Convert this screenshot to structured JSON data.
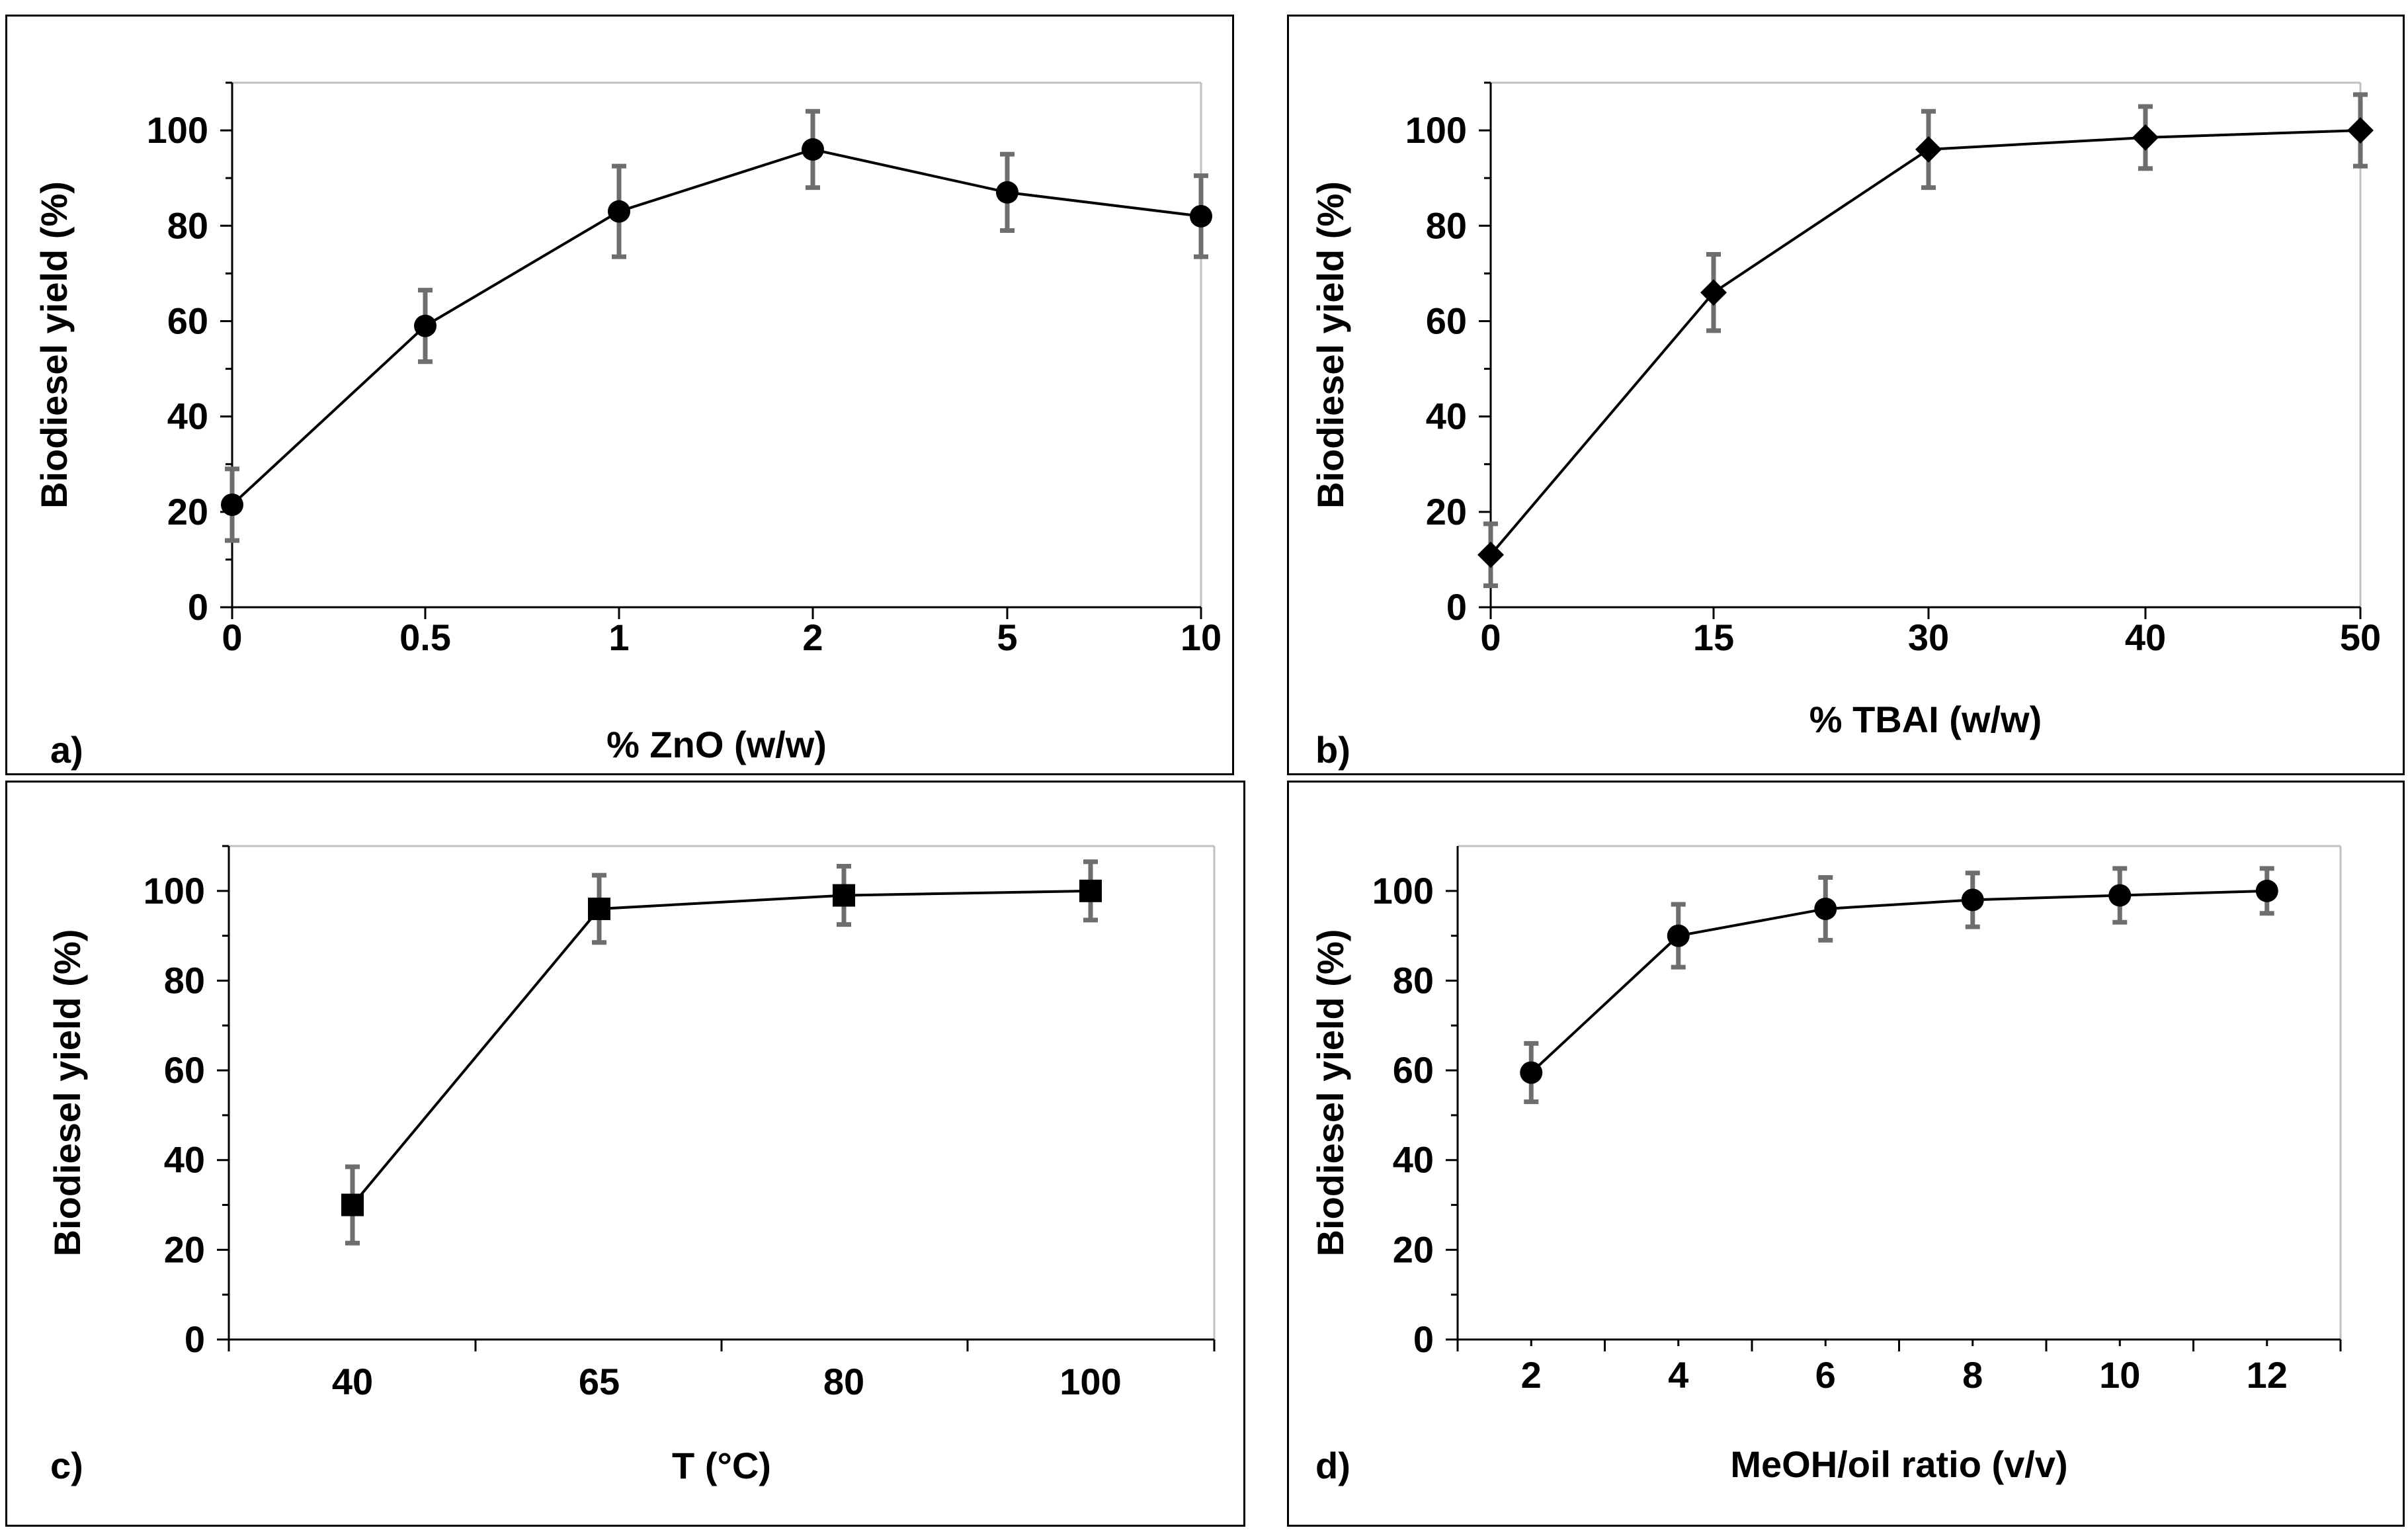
{
  "chart_data": [
    {
      "panel": "a)",
      "type": "line",
      "xlabel": "% ZnO (w/w)",
      "ylabel": "Biodiesel yield (%)",
      "categories": [
        "0",
        "0.5",
        "1",
        "2",
        "5",
        "10"
      ],
      "values": [
        21.5,
        59,
        83,
        96,
        87,
        82
      ],
      "errors": [
        7.5,
        7.5,
        9.5,
        8,
        8,
        8.5
      ],
      "ylim": [
        0,
        110
      ],
      "yticks": [
        0,
        20,
        40,
        60,
        80,
        100
      ],
      "marker": "circle"
    },
    {
      "panel": "b)",
      "type": "line",
      "xlabel": "% TBAI (w/w)",
      "ylabel": "Biodiesel yield (%)",
      "categories": [
        "0",
        "15",
        "30",
        "40",
        "50"
      ],
      "values": [
        11,
        66,
        96,
        98.5,
        100
      ],
      "errors": [
        6.5,
        8,
        8,
        6.5,
        7.5
      ],
      "ylim": [
        0,
        110
      ],
      "yticks": [
        0,
        20,
        40,
        60,
        80,
        100
      ],
      "marker": "diamond"
    },
    {
      "panel": "c)",
      "type": "line",
      "xlabel": "T (°C)",
      "ylabel": "Biodiesel yield (%)",
      "categories": [
        "40",
        "65",
        "80",
        "100"
      ],
      "values": [
        30,
        96,
        99,
        100
      ],
      "errors": [
        8.5,
        7.5,
        6.5,
        6.5
      ],
      "ylim": [
        0,
        110
      ],
      "yticks": [
        0,
        20,
        40,
        60,
        80,
        100
      ],
      "marker": "square"
    },
    {
      "panel": "d)",
      "type": "line",
      "xlabel": "MeOH/oil ratio (v/v)",
      "ylabel": "Biodiesel yield (%)",
      "x": [
        2,
        4,
        6,
        8,
        10,
        12
      ],
      "values": [
        59.5,
        90,
        96,
        98,
        99,
        100
      ],
      "errors": [
        6.5,
        7,
        7,
        6,
        6,
        5
      ],
      "xlim": [
        1,
        13
      ],
      "xticks": [
        2,
        4,
        6,
        8,
        10,
        12
      ],
      "ylim": [
        0,
        110
      ],
      "yticks": [
        0,
        20,
        40,
        60,
        80,
        100
      ],
      "marker": "circle"
    }
  ]
}
